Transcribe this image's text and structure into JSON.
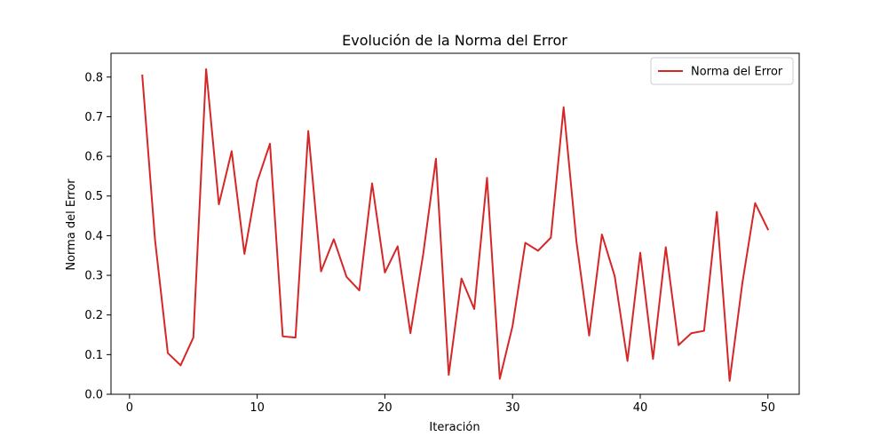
{
  "chart_data": {
    "type": "line",
    "title": "Evolución de la Norma del Error",
    "xlabel": "Iteración",
    "ylabel": "Norma del Error",
    "xlim": [
      -1.45,
      52.45
    ],
    "ylim": [
      0,
      0.86
    ],
    "xticks": [
      0,
      10,
      20,
      30,
      40,
      50
    ],
    "yticks": [
      0.0,
      0.1,
      0.2,
      0.3,
      0.4,
      0.5,
      0.6,
      0.7,
      0.8
    ],
    "ytick_labels": [
      "0.0",
      "0.1",
      "0.2",
      "0.3",
      "0.4",
      "0.5",
      "0.6",
      "0.7",
      "0.8"
    ],
    "grid": false,
    "legend_position": "top-right",
    "series": [
      {
        "name": "Norma del Error",
        "color": "#d62728",
        "x": [
          1,
          2,
          3,
          4,
          5,
          6,
          7,
          8,
          9,
          10,
          11,
          12,
          13,
          14,
          15,
          16,
          17,
          18,
          19,
          20,
          21,
          22,
          23,
          24,
          25,
          26,
          27,
          28,
          29,
          30,
          31,
          32,
          33,
          34,
          35,
          36,
          37,
          38,
          39,
          40,
          41,
          42,
          43,
          44,
          45,
          46,
          47,
          48,
          49,
          50
        ],
        "y": [
          0.804,
          0.389,
          0.104,
          0.073,
          0.143,
          0.82,
          0.479,
          0.613,
          0.354,
          0.536,
          0.632,
          0.146,
          0.143,
          0.664,
          0.31,
          0.391,
          0.296,
          0.262,
          0.532,
          0.307,
          0.373,
          0.154,
          0.353,
          0.594,
          0.049,
          0.292,
          0.215,
          0.546,
          0.039,
          0.172,
          0.382,
          0.362,
          0.395,
          0.724,
          0.386,
          0.148,
          0.403,
          0.298,
          0.084,
          0.357,
          0.089,
          0.371,
          0.124,
          0.154,
          0.16,
          0.46,
          0.034,
          0.281,
          0.482,
          0.416
        ]
      }
    ]
  }
}
